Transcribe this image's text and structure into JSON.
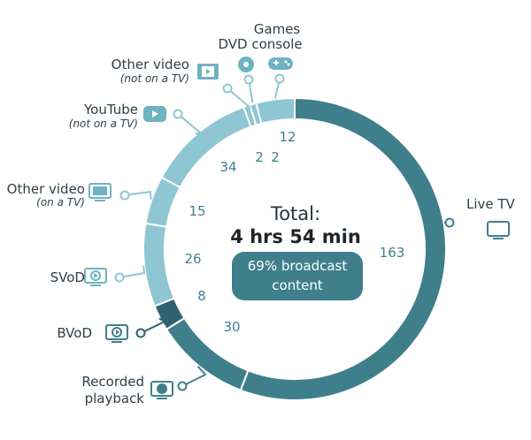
{
  "chart_data": {
    "type": "pie",
    "total_label": "Total:",
    "total_value": "4 hrs 54 min",
    "badge_line1": "69% broadcast",
    "badge_line2": "content",
    "slices": [
      {
        "label": "Live TV",
        "value": 163,
        "color": "#3f7f8c",
        "icon": "tv-icon"
      },
      {
        "label": "Recorded playback",
        "value": 30,
        "color": "#3f7f8c",
        "icon": "rec-tv-icon"
      },
      {
        "label": "BVoD",
        "value": 8,
        "color": "#2f6370",
        "icon": "bvod-icon"
      },
      {
        "label": "SVoD",
        "value": 26,
        "color": "#8ec6d3",
        "icon": "svod-icon"
      },
      {
        "label": "Other video",
        "sublabel": "(on a TV)",
        "value": 15,
        "color": "#8ec6d3",
        "icon": "tv-film-icon"
      },
      {
        "label": "YouTube",
        "sublabel": "(not on a TV)",
        "value": 34,
        "color": "#8ec6d3",
        "icon": "youtube-icon"
      },
      {
        "label": "Other video",
        "sublabel": "(not on a TV)",
        "value": 2,
        "color": "#8ec6d3",
        "icon": "film-strip-icon"
      },
      {
        "label": "DVD",
        "value": 2,
        "color": "#8ec6d3",
        "icon": "dvd-icon"
      },
      {
        "label": "Games console",
        "value": 12,
        "color": "#8ec6d3",
        "icon": "gamepad-icon"
      }
    ],
    "colors": {
      "broadcast": "#3f7f8c",
      "broadcast_dark": "#2f6370",
      "non_broadcast": "#8ec6d3",
      "text_dark_value": "#3f7f8c",
      "text_light_value": "#ffffff",
      "badge": "#3f7f8c"
    }
  }
}
